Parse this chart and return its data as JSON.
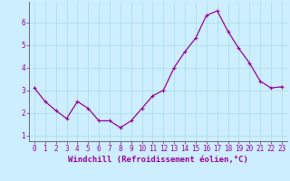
{
  "x": [
    0,
    1,
    2,
    3,
    4,
    5,
    6,
    7,
    8,
    9,
    10,
    11,
    12,
    13,
    14,
    15,
    16,
    17,
    18,
    19,
    20,
    21,
    22,
    23
  ],
  "y": [
    3.1,
    2.5,
    2.1,
    1.75,
    2.5,
    2.2,
    1.65,
    1.65,
    1.35,
    1.65,
    2.2,
    2.75,
    3.0,
    4.0,
    4.7,
    5.3,
    6.3,
    6.5,
    5.6,
    4.85,
    4.2,
    3.4,
    3.1,
    3.15
  ],
  "line_color": "#990099",
  "marker": "+",
  "marker_size": 3,
  "bg_color": "#cceeff",
  "grid_color": "#aadddd",
  "xlabel": "Windchill (Refroidissement éolien,°C)",
  "xlim": [
    -0.5,
    23.5
  ],
  "ylim": [
    0.75,
    6.9
  ],
  "yticks": [
    1,
    2,
    3,
    4,
    5,
    6
  ],
  "xticks": [
    0,
    1,
    2,
    3,
    4,
    5,
    6,
    7,
    8,
    9,
    10,
    11,
    12,
    13,
    14,
    15,
    16,
    17,
    18,
    19,
    20,
    21,
    22,
    23
  ],
  "tick_color": "#990099",
  "tick_label_fontsize": 5.5,
  "xlabel_fontsize": 6.5,
  "axis_color": "#666666",
  "linewidth": 0.9
}
